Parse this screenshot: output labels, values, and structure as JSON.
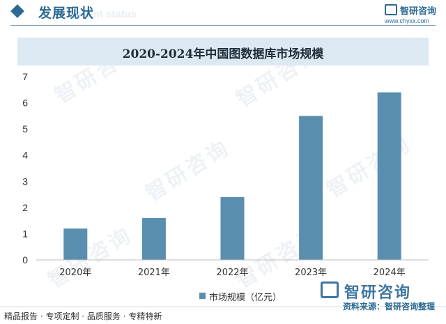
{
  "header": {
    "section_title": "发展现状",
    "ghost_text": "ment status",
    "logo_name": "智研咨询",
    "logo_url": "www.chyxx.com"
  },
  "watermark_text": "智研咨询",
  "chart_data": {
    "type": "bar",
    "title": "2020-2024年中国图数据库市场规模",
    "categories": [
      "2020年",
      "2021年",
      "2022年",
      "2023年",
      "2024年"
    ],
    "series": [
      {
        "name": "市场规模（亿元）",
        "values": [
          1.2,
          1.6,
          2.4,
          5.5,
          6.4
        ]
      }
    ],
    "ylim": [
      0,
      7
    ],
    "yticks": [
      0,
      1,
      2,
      3,
      4,
      5,
      6,
      7
    ],
    "xlabel": "",
    "ylabel": "",
    "grid": false,
    "legend_position": "bottom",
    "bar_color": "#5a8eaf"
  },
  "footer": {
    "tags": "精品报告 · 专项定制 · 品质服务 · 专精特新",
    "brand": "智研咨询",
    "source": "资料来源：智研咨询整理"
  }
}
